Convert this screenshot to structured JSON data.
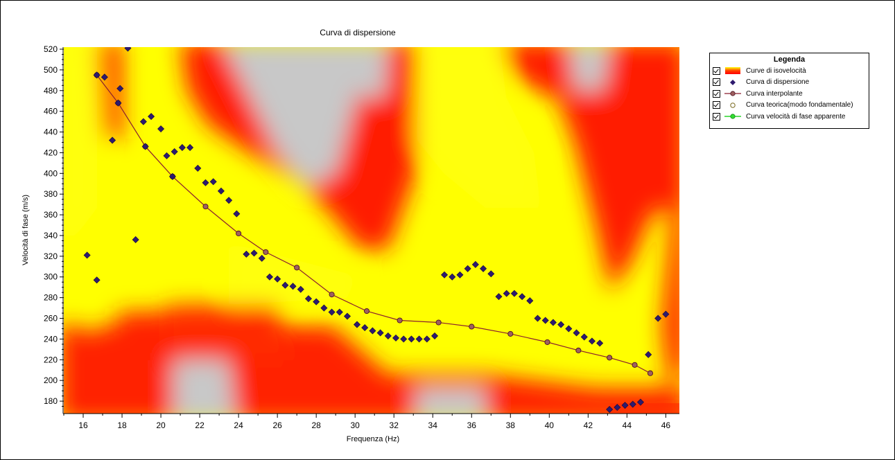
{
  "chart_data": {
    "type": "heatmap",
    "title": "Curva di dispersione",
    "xlabel": "Frequenza (Hz)",
    "ylabel": "Velocità di fase (m/s)",
    "xlim": [
      15,
      46.7
    ],
    "ylim": [
      168,
      522
    ],
    "x_ticks": [
      16,
      18,
      20,
      22,
      24,
      26,
      28,
      30,
      32,
      34,
      36,
      38,
      40,
      42,
      44,
      46
    ],
    "y_ticks": [
      180,
      200,
      220,
      240,
      260,
      280,
      300,
      320,
      340,
      360,
      380,
      400,
      420,
      440,
      460,
      480,
      500,
      520
    ],
    "legend_title": "Legenda",
    "legend_position": "top-right, outside plot",
    "colors": {
      "heat_low": "#ffff00",
      "heat_mid": "#ff0000",
      "heat_high": "#c8c8c8",
      "points": "#2e1a6e",
      "interpolating": "#8a1f2e",
      "interpolating_marker": "#9e6060",
      "theoretical": "#ffffff",
      "apparent": "#00cc00"
    },
    "series": [
      {
        "name": "Curve di isovelocità",
        "type": "heatmap",
        "colorscale": [
          "#ffff00",
          "#ff0000",
          "#c8c8c8"
        ]
      },
      {
        "name": "Curva di dispersione",
        "type": "scatter",
        "marker": "diamond",
        "points": [
          [
            16.2,
            321
          ],
          [
            16.7,
            297
          ],
          [
            16.7,
            495
          ],
          [
            17.1,
            493
          ],
          [
            17.5,
            432
          ],
          [
            17.8,
            468
          ],
          [
            17.9,
            482
          ],
          [
            18.3,
            521
          ],
          [
            18.7,
            336
          ],
          [
            19.1,
            450
          ],
          [
            19.2,
            426
          ],
          [
            19.5,
            455
          ],
          [
            20.0,
            443
          ],
          [
            20.3,
            417
          ],
          [
            20.6,
            397
          ],
          [
            20.7,
            421
          ],
          [
            21.1,
            425
          ],
          [
            21.5,
            425
          ],
          [
            21.9,
            405
          ],
          [
            22.3,
            391
          ],
          [
            22.7,
            392
          ],
          [
            23.1,
            383
          ],
          [
            23.5,
            374
          ],
          [
            23.9,
            361
          ],
          [
            24.4,
            322
          ],
          [
            24.8,
            323
          ],
          [
            25.2,
            318
          ],
          [
            25.6,
            300
          ],
          [
            26.0,
            298
          ],
          [
            26.4,
            292
          ],
          [
            26.8,
            291
          ],
          [
            27.2,
            288
          ],
          [
            27.6,
            279
          ],
          [
            28.0,
            276
          ],
          [
            28.4,
            270
          ],
          [
            28.8,
            266
          ],
          [
            29.2,
            266
          ],
          [
            29.6,
            262
          ],
          [
            30.1,
            254
          ],
          [
            30.5,
            251
          ],
          [
            30.9,
            248
          ],
          [
            31.3,
            246
          ],
          [
            31.7,
            243
          ],
          [
            32.1,
            241
          ],
          [
            32.5,
            240
          ],
          [
            32.9,
            240
          ],
          [
            33.3,
            240
          ],
          [
            33.7,
            240
          ],
          [
            34.1,
            243
          ],
          [
            34.6,
            302
          ],
          [
            35.0,
            300
          ],
          [
            35.4,
            302
          ],
          [
            35.8,
            308
          ],
          [
            36.2,
            312
          ],
          [
            36.6,
            308
          ],
          [
            37.0,
            303
          ],
          [
            37.4,
            281
          ],
          [
            37.8,
            284
          ],
          [
            38.2,
            284
          ],
          [
            38.6,
            281
          ],
          [
            39.0,
            277
          ],
          [
            39.4,
            260
          ],
          [
            39.8,
            258
          ],
          [
            40.2,
            256
          ],
          [
            40.6,
            254
          ],
          [
            41.0,
            250
          ],
          [
            41.4,
            246
          ],
          [
            41.8,
            242
          ],
          [
            42.2,
            238
          ],
          [
            42.6,
            236
          ],
          [
            43.1,
            172
          ],
          [
            43.5,
            174
          ],
          [
            43.9,
            176
          ],
          [
            44.3,
            177
          ],
          [
            44.7,
            179
          ],
          [
            45.1,
            225
          ],
          [
            45.6,
            260
          ],
          [
            46.0,
            264
          ]
        ]
      },
      {
        "name": "Curva interpolante",
        "type": "line",
        "marker": "circle",
        "points": [
          [
            16.7,
            495
          ],
          [
            17.8,
            468
          ],
          [
            19.2,
            426
          ],
          [
            20.6,
            397
          ],
          [
            22.3,
            368
          ],
          [
            24.0,
            342
          ],
          [
            25.4,
            324
          ],
          [
            27.0,
            309
          ],
          [
            28.8,
            283
          ],
          [
            30.6,
            267
          ],
          [
            32.3,
            258
          ],
          [
            34.3,
            256
          ],
          [
            36.0,
            252
          ],
          [
            38.0,
            245
          ],
          [
            39.9,
            237
          ],
          [
            41.5,
            229
          ],
          [
            43.1,
            222
          ],
          [
            44.4,
            215
          ],
          [
            45.2,
            207
          ]
        ]
      },
      {
        "name": "Curva teorica(modo fondamentale)",
        "type": "line",
        "points": []
      },
      {
        "name": "Curva velocità di fase apparente",
        "type": "line",
        "points": []
      }
    ]
  }
}
